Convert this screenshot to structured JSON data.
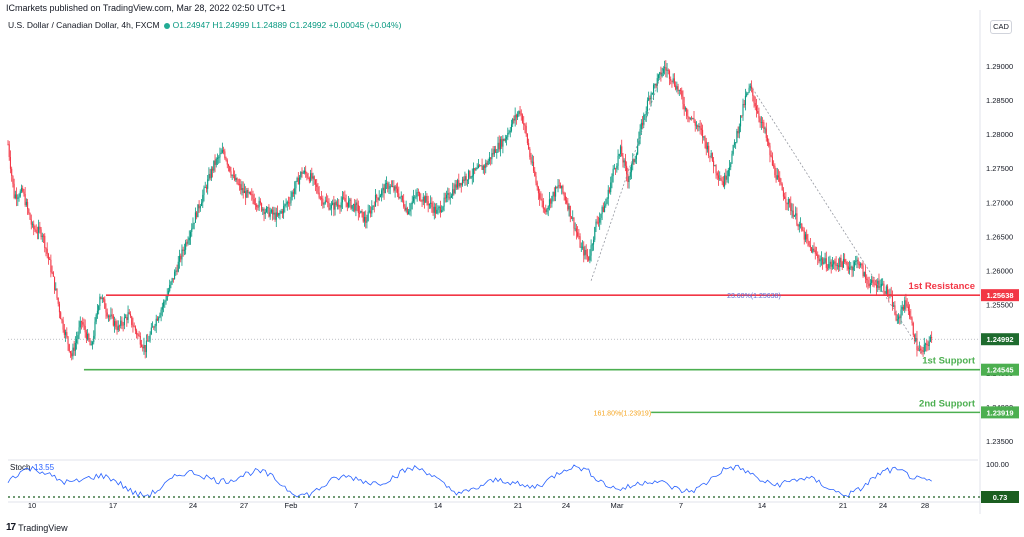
{
  "header": {
    "publisher": "ICmarkets published on TradingView.com, Mar 28, 2022 02:50 UTC+1",
    "symbol": "U.S. Dollar / Canadian Dollar, 4h, FXCM",
    "ohlc": "O1.24947  H1.24999  L1.24889  C1.24992  +0.00045 (+0.04%)",
    "currency": "CAD"
  },
  "footer": {
    "logo_mark": "17",
    "logo_text": "TradingView"
  },
  "colors": {
    "up": "#089981",
    "down": "#f23645",
    "resistance": "#f23645",
    "support": "#4caf50",
    "stoch": "#2962ff",
    "fib": "#f5a623"
  },
  "annotations": {
    "resistance_label": "1st Resistance",
    "support1_label": "1st Support",
    "support2_label": "2nd Support",
    "fib_resistance_label": "23.60%(1.25638)",
    "fib_support_label": "161.80%(1.23919)"
  },
  "stoch": {
    "label": "Stoch",
    "value": "13.55",
    "upper": "100.00",
    "current": "0.73"
  },
  "chart_data": {
    "type": "candlestick",
    "title": "U.S. Dollar / Canadian Dollar, 4h, FXCM",
    "y_axis": {
      "ticks": [
        "1.29000",
        "1.28500",
        "1.28000",
        "1.27500",
        "1.27000",
        "1.26500",
        "1.26000",
        "1.25500",
        "1.25000",
        "1.24500",
        "1.24000",
        "1.23500"
      ],
      "tick_values": [
        1.29,
        1.285,
        1.28,
        1.275,
        1.27,
        1.265,
        1.26,
        1.255,
        1.25,
        1.245,
        1.24,
        1.235
      ],
      "ylim": [
        1.2325,
        1.2938
      ]
    },
    "x_axis": {
      "ticks": [
        "10",
        "17",
        "24",
        "27",
        "Feb",
        "7",
        "14",
        "21",
        "24",
        "Mar",
        "7",
        "14",
        "21",
        "24",
        "28"
      ]
    },
    "price_labels": [
      {
        "text": "1.25638",
        "value": 1.25638,
        "kind": "resistance"
      },
      {
        "text": "1.24992",
        "value": 1.24992,
        "kind": "current"
      },
      {
        "text": "1.24545",
        "value": 1.24545,
        "kind": "support"
      },
      {
        "text": "1.23919",
        "value": 1.23919,
        "kind": "support"
      }
    ],
    "levels": {
      "resistance": 1.25638,
      "support1": 1.24545,
      "support2": 1.23919,
      "current": 1.24992
    },
    "path": [
      [
        0,
        1.2785
      ],
      [
        5,
        1.271
      ],
      [
        12,
        1.2715
      ],
      [
        20,
        1.2662
      ],
      [
        28,
        1.2655
      ],
      [
        36,
        1.2595
      ],
      [
        44,
        1.2525
      ],
      [
        52,
        1.2475
      ],
      [
        60,
        1.2525
      ],
      [
        68,
        1.2485
      ],
      [
        75,
        1.2565
      ],
      [
        82,
        1.2535
      ],
      [
        90,
        1.2515
      ],
      [
        98,
        1.2535
      ],
      [
        106,
        1.2505
      ],
      [
        112,
        1.2485
      ],
      [
        120,
        1.2525
      ],
      [
        128,
        1.2555
      ],
      [
        136,
        1.2595
      ],
      [
        144,
        1.2635
      ],
      [
        152,
        1.2675
      ],
      [
        160,
        1.2715
      ],
      [
        168,
        1.2755
      ],
      [
        176,
        1.2775
      ],
      [
        184,
        1.2735
      ],
      [
        192,
        1.2715
      ],
      [
        200,
        1.2705
      ],
      [
        210,
        1.2688
      ],
      [
        220,
        1.2678
      ],
      [
        230,
        1.2705
      ],
      [
        240,
        1.2745
      ],
      [
        248,
        1.2735
      ],
      [
        256,
        1.2705
      ],
      [
        264,
        1.2693
      ],
      [
        274,
        1.2702
      ],
      [
        284,
        1.2693
      ],
      [
        292,
        1.2672
      ],
      [
        300,
        1.2705
      ],
      [
        310,
        1.2725
      ],
      [
        318,
        1.2715
      ],
      [
        326,
        1.2688
      ],
      [
        334,
        1.2712
      ],
      [
        342,
        1.2702
      ],
      [
        350,
        1.2685
      ],
      [
        358,
        1.2705
      ],
      [
        366,
        1.2725
      ],
      [
        374,
        1.2738
      ],
      [
        382,
        1.2745
      ],
      [
        390,
        1.2755
      ],
      [
        398,
        1.2778
      ],
      [
        406,
        1.2795
      ],
      [
        412,
        1.2818
      ],
      [
        418,
        1.2835
      ],
      [
        422,
        1.2808
      ],
      [
        426,
        1.2768
      ],
      [
        432,
        1.2722
      ],
      [
        438,
        1.2688
      ],
      [
        444,
        1.2708
      ],
      [
        450,
        1.2725
      ],
      [
        456,
        1.2702
      ],
      [
        462,
        1.2668
      ],
      [
        468,
        1.2632
      ],
      [
        474,
        1.2618
      ],
      [
        480,
        1.2668
      ],
      [
        488,
        1.2698
      ],
      [
        494,
        1.2745
      ],
      [
        500,
        1.2775
      ],
      [
        506,
        1.2735
      ],
      [
        512,
        1.2768
      ],
      [
        518,
        1.2818
      ],
      [
        524,
        1.2858
      ],
      [
        530,
        1.2878
      ],
      [
        536,
        1.2898
      ],
      [
        542,
        1.2882
      ],
      [
        548,
        1.2862
      ],
      [
        554,
        1.2832
      ],
      [
        560,
        1.2818
      ],
      [
        566,
        1.2802
      ],
      [
        572,
        1.2775
      ],
      [
        578,
        1.2748
      ],
      [
        584,
        1.2728
      ],
      [
        590,
        1.2762
      ],
      [
        596,
        1.2808
      ],
      [
        602,
        1.2852
      ],
      [
        606,
        1.2868
      ],
      [
        612,
        1.2832
      ],
      [
        618,
        1.2802
      ],
      [
        624,
        1.2755
      ],
      [
        630,
        1.2725
      ],
      [
        636,
        1.2702
      ],
      [
        642,
        1.2682
      ],
      [
        648,
        1.2658
      ],
      [
        654,
        1.2635
      ],
      [
        660,
        1.2622
      ],
      [
        666,
        1.2612
      ],
      [
        672,
        1.2608
      ],
      [
        680,
        1.2612
      ],
      [
        688,
        1.2605
      ],
      [
        694,
        1.2615
      ],
      [
        700,
        1.2588
      ],
      [
        706,
        1.2578
      ],
      [
        712,
        1.2582
      ],
      [
        718,
        1.2568
      ],
      [
        722,
        1.2552
      ],
      [
        726,
        1.2522
      ],
      [
        730,
        1.2548
      ],
      [
        734,
        1.2552
      ],
      [
        738,
        1.2518
      ],
      [
        742,
        1.2488
      ],
      [
        746,
        1.2478
      ],
      [
        750,
        1.2492
      ],
      [
        754,
        1.2499
      ]
    ]
  }
}
